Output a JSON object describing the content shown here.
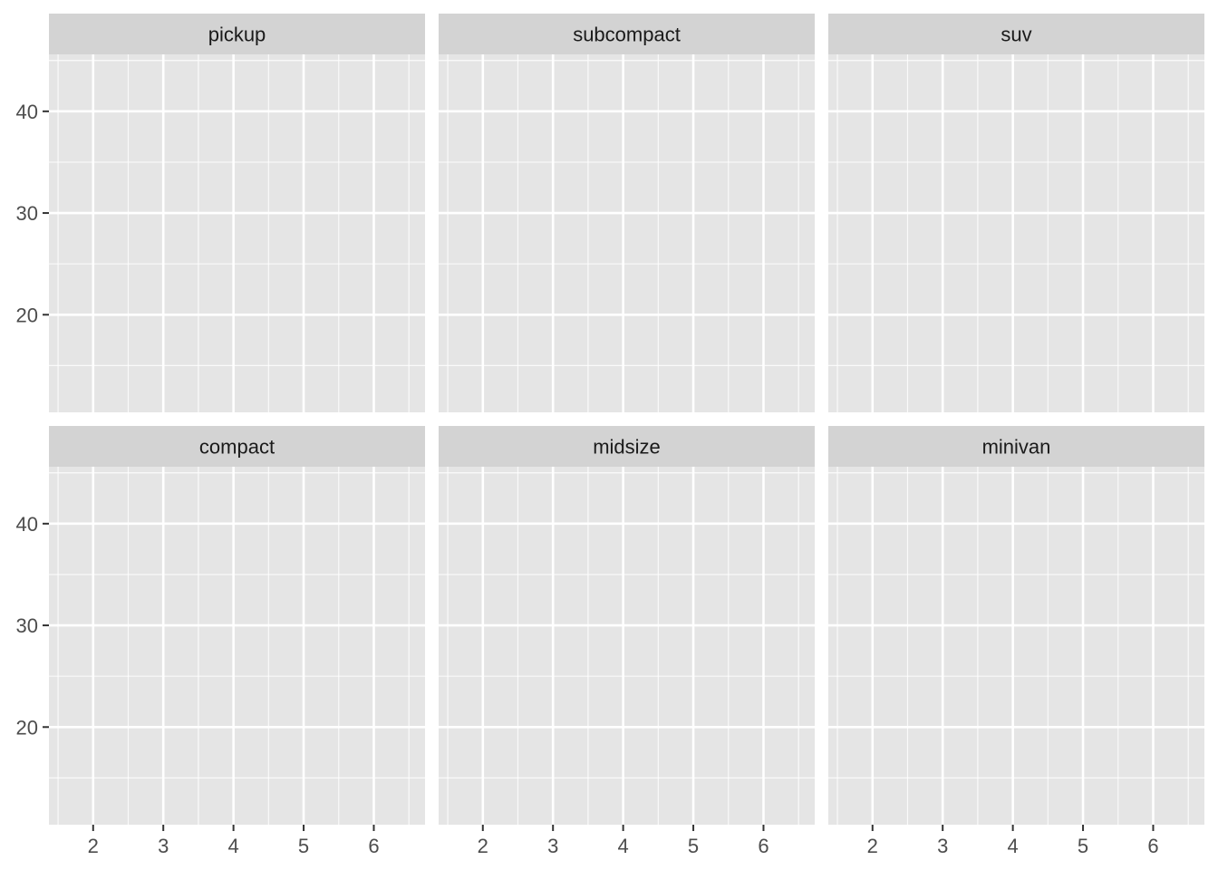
{
  "chart_data": {
    "type": "scatter",
    "title": "",
    "xlabel": "",
    "ylabel": "",
    "facet_layout": {
      "rows": 2,
      "cols": 3
    },
    "xlim": [
      1.37,
      6.73
    ],
    "ylim": [
      10.4,
      45.6
    ],
    "x_ticks": [
      2,
      3,
      4,
      5,
      6
    ],
    "x_tick_labels": [
      "2",
      "3",
      "4",
      "5",
      "6"
    ],
    "y_ticks": [
      20,
      30,
      40
    ],
    "y_tick_labels": [
      "20",
      "30",
      "40"
    ],
    "grid": true,
    "panel_background": "#E5E5E5",
    "strip_background": "#D3D3D3",
    "grid_color": "#FFFFFF",
    "facets": [
      {
        "label": "pickup",
        "points": []
      },
      {
        "label": "subcompact",
        "points": []
      },
      {
        "label": "suv",
        "points": []
      },
      {
        "label": "compact",
        "points": []
      },
      {
        "label": "midsize",
        "points": []
      },
      {
        "label": "minivan",
        "points": []
      }
    ]
  }
}
